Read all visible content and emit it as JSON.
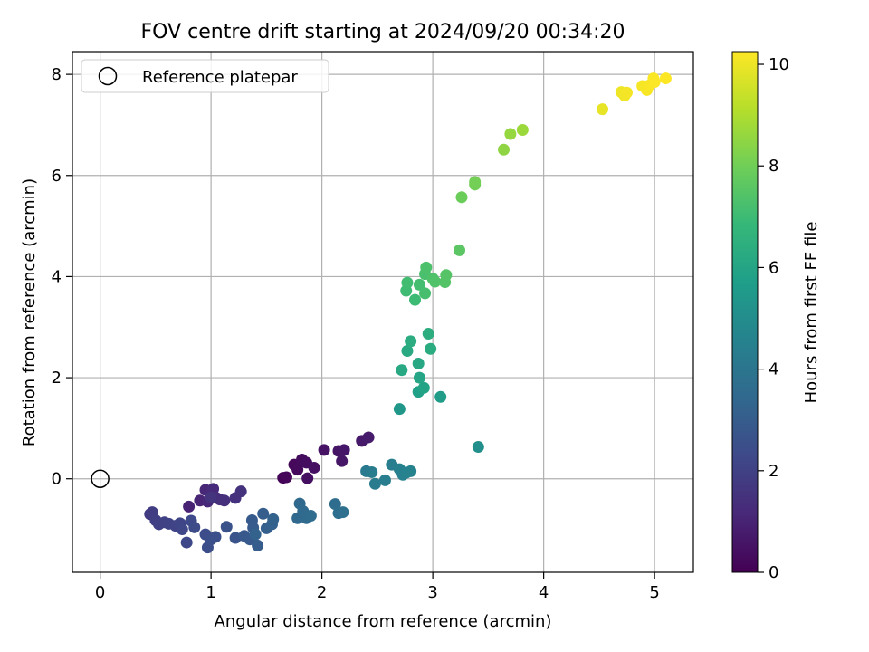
{
  "chart_data": {
    "type": "scatter",
    "title": "FOV centre drift starting at 2024/09/20 00:34:20",
    "xlabel": "Angular distance from reference (arcmin)",
    "ylabel": "Rotation from reference (arcmin)",
    "xlim": [
      -0.25,
      5.35
    ],
    "ylim": [
      -1.85,
      8.45
    ],
    "xticks": [
      0,
      1,
      2,
      3,
      4,
      5
    ],
    "yticks": [
      0,
      2,
      4,
      6,
      8
    ],
    "grid": true,
    "legend": {
      "position": "top-left",
      "entries": [
        "Reference platepar"
      ]
    },
    "reference_point": {
      "x": 0,
      "y": 0
    },
    "colorbar": {
      "label": "Hours from first FF file",
      "colormap": "viridis",
      "range": [
        0,
        10.25
      ],
      "ticks": [
        0,
        2,
        4,
        6,
        8,
        10
      ]
    },
    "colors": [
      "#440154",
      "#482878",
      "#3e4989",
      "#31688e",
      "#26828e",
      "#1f9e89",
      "#35b779",
      "#6ece58",
      "#b5de2b",
      "#fde725"
    ],
    "points": [
      [
        1.65,
        0.02,
        0.1
      ],
      [
        1.68,
        0.03,
        0.15
      ],
      [
        1.75,
        0.28,
        0.2
      ],
      [
        1.78,
        0.18,
        0.25
      ],
      [
        1.82,
        0.38,
        0.3
      ],
      [
        1.86,
        0.32,
        0.35
      ],
      [
        1.87,
        0.01,
        0.4
      ],
      [
        1.93,
        0.22,
        0.45
      ],
      [
        2.02,
        0.57,
        0.5
      ],
      [
        2.15,
        0.55,
        0.55
      ],
      [
        2.18,
        0.35,
        0.6
      ],
      [
        2.2,
        0.57,
        0.65
      ],
      [
        2.36,
        0.75,
        0.7
      ],
      [
        2.42,
        0.82,
        0.75
      ],
      [
        0.8,
        -0.55,
        1.0
      ],
      [
        0.9,
        -0.43,
        1.05
      ],
      [
        0.95,
        -0.22,
        1.1
      ],
      [
        0.97,
        -0.45,
        1.15
      ],
      [
        1.0,
        -0.3,
        1.2
      ],
      [
        1.02,
        -0.2,
        1.25
      ],
      [
        1.05,
        -0.38,
        1.3
      ],
      [
        1.08,
        -0.41,
        1.35
      ],
      [
        1.12,
        -0.43,
        1.4
      ],
      [
        1.22,
        -0.38,
        1.45
      ],
      [
        1.27,
        -0.25,
        1.5
      ],
      [
        1.0,
        -0.37,
        1.55
      ],
      [
        0.45,
        -0.7,
        1.8
      ],
      [
        0.47,
        -0.66,
        1.85
      ],
      [
        0.5,
        -0.82,
        1.9
      ],
      [
        0.53,
        -0.9,
        1.95
      ],
      [
        0.58,
        -0.86,
        2.0
      ],
      [
        0.62,
        -0.89,
        2.05
      ],
      [
        0.68,
        -0.93,
        2.1
      ],
      [
        0.72,
        -0.88,
        2.15
      ],
      [
        0.74,
        -1.0,
        2.2
      ],
      [
        0.78,
        -1.26,
        2.25
      ],
      [
        0.82,
        -0.83,
        2.3
      ],
      [
        0.85,
        -0.96,
        2.35
      ],
      [
        0.95,
        -1.1,
        2.4
      ],
      [
        0.97,
        -1.36,
        2.45
      ],
      [
        1.0,
        -1.2,
        2.5
      ],
      [
        1.04,
        -1.15,
        2.55
      ],
      [
        1.14,
        -0.95,
        2.6
      ],
      [
        1.22,
        -1.17,
        2.65
      ],
      [
        1.3,
        -1.13,
        2.8
      ],
      [
        1.35,
        -1.2,
        2.85
      ],
      [
        1.37,
        -0.82,
        2.9
      ],
      [
        1.38,
        -0.97,
        2.95
      ],
      [
        1.42,
        -1.32,
        3.0
      ],
      [
        1.47,
        -0.69,
        3.05
      ],
      [
        1.5,
        -0.98,
        3.1
      ],
      [
        1.55,
        -0.9,
        3.15
      ],
      [
        1.56,
        -0.8,
        3.2
      ],
      [
        1.4,
        -1.1,
        3.25
      ],
      [
        1.78,
        -0.78,
        3.4
      ],
      [
        1.8,
        -0.49,
        3.45
      ],
      [
        1.83,
        -0.64,
        3.5
      ],
      [
        1.86,
        -0.78,
        3.55
      ],
      [
        1.9,
        -0.73,
        3.6
      ],
      [
        2.12,
        -0.5,
        3.65
      ],
      [
        2.15,
        -0.68,
        3.7
      ],
      [
        2.19,
        -0.66,
        3.75
      ],
      [
        2.4,
        0.15,
        4.2
      ],
      [
        2.45,
        0.13,
        4.25
      ],
      [
        2.48,
        -0.1,
        4.3
      ],
      [
        2.57,
        -0.03,
        4.35
      ],
      [
        2.63,
        0.28,
        4.4
      ],
      [
        2.7,
        0.19,
        4.45
      ],
      [
        2.73,
        0.08,
        4.5
      ],
      [
        2.76,
        0.12,
        4.55
      ],
      [
        2.8,
        0.15,
        4.6
      ],
      [
        3.41,
        0.63,
        5.1
      ],
      [
        2.7,
        1.38,
        5.4
      ],
      [
        3.07,
        1.62,
        5.6
      ],
      [
        2.87,
        1.72,
        5.8
      ],
      [
        2.92,
        1.8,
        5.9
      ],
      [
        2.88,
        2.0,
        6.0
      ],
      [
        2.87,
        2.28,
        6.1
      ],
      [
        2.72,
        2.15,
        6.15
      ],
      [
        2.77,
        2.53,
        6.2
      ],
      [
        2.98,
        2.57,
        6.3
      ],
      [
        2.8,
        2.72,
        6.35
      ],
      [
        2.96,
        2.87,
        6.4
      ],
      [
        2.84,
        3.54,
        7.0
      ],
      [
        2.76,
        3.72,
        7.05
      ],
      [
        2.77,
        3.88,
        7.1
      ],
      [
        2.88,
        3.84,
        7.15
      ],
      [
        2.93,
        3.67,
        7.2
      ],
      [
        2.93,
        4.05,
        7.25
      ],
      [
        2.94,
        4.18,
        7.3
      ],
      [
        3.0,
        3.96,
        7.35
      ],
      [
        3.02,
        3.9,
        7.4
      ],
      [
        3.11,
        3.89,
        7.45
      ],
      [
        3.12,
        4.03,
        7.5
      ],
      [
        3.24,
        4.52,
        7.6
      ],
      [
        3.26,
        5.57,
        7.9
      ],
      [
        3.38,
        5.82,
        8.0
      ],
      [
        3.38,
        5.87,
        8.05
      ],
      [
        3.64,
        6.51,
        8.5
      ],
      [
        3.7,
        6.82,
        8.6
      ],
      [
        3.81,
        6.9,
        8.7
      ],
      [
        4.53,
        7.31,
        9.9
      ],
      [
        4.7,
        7.65,
        10.0
      ],
      [
        4.73,
        7.58,
        10.05
      ],
      [
        4.75,
        7.64,
        10.1
      ],
      [
        4.89,
        7.77,
        10.12
      ],
      [
        4.93,
        7.69,
        10.15
      ],
      [
        4.95,
        7.78,
        10.18
      ],
      [
        4.99,
        7.92,
        10.2
      ],
      [
        5.0,
        7.85,
        10.22
      ],
      [
        5.1,
        7.92,
        10.25
      ]
    ]
  }
}
